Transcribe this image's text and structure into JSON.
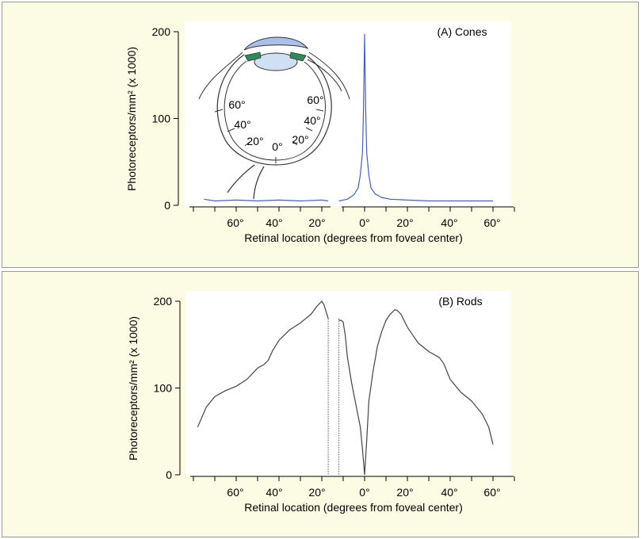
{
  "chart_data": [
    {
      "type": "line",
      "title": "(A) Cones",
      "xlabel": "Retinal location (degrees from foveal center)",
      "ylabel": "Photoreceptors/mm² (x 1000)",
      "x_ticks": [
        "60°",
        "40°",
        "20°",
        "0°",
        "20°",
        "40°",
        "60°"
      ],
      "y_ticks": [
        "0",
        "100",
        "200"
      ],
      "ylim": [
        0,
        200
      ],
      "xlim": [
        -80,
        70
      ],
      "series": [
        {
          "color": "#4a5fb0",
          "segments": [
            {
              "x": [
                -75,
                -70,
                -60,
                -50,
                -40,
                -30,
                -20,
                -17
              ],
              "y": [
                7,
                5,
                6,
                5,
                6,
                5,
                6,
                5
              ]
            },
            {
              "x": [
                -12,
                -8,
                -5,
                -3,
                -2,
                -1,
                -0.5,
                0,
                0.5,
                1,
                2,
                3,
                5,
                8,
                12,
                20,
                30,
                40,
                50,
                60
              ],
              "y": [
                5,
                7,
                12,
                20,
                35,
                60,
                110,
                197,
                110,
                60,
                35,
                20,
                13,
                9,
                7,
                6,
                5,
                5,
                5,
                5
              ]
            }
          ]
        }
      ],
      "inset": {
        "type": "eye-cross-section",
        "labels_left": [
          "60°",
          "40°",
          "20°"
        ],
        "label_center": "0°",
        "labels_right": [
          "60°",
          "40°",
          "20°"
        ]
      }
    },
    {
      "type": "line",
      "title": "(B) Rods",
      "xlabel": "Retinal location (degrees from foveal center)",
      "ylabel": "Photoreceptors/mm² (x 1000)",
      "x_ticks": [
        "60°",
        "40°",
        "20°",
        "0°",
        "20°",
        "40°",
        "60°"
      ],
      "y_ticks": [
        "0",
        "100",
        "200"
      ],
      "ylim": [
        0,
        200
      ],
      "xlim": [
        -80,
        70
      ],
      "blind_spot": [
        -17,
        -12
      ],
      "series": [
        {
          "color": "#444444",
          "segments": [
            {
              "x": [
                -78,
                -74,
                -70,
                -65,
                -60,
                -55,
                -50,
                -47,
                -45,
                -43,
                -40,
                -35,
                -30,
                -25,
                -22,
                -20,
                -19,
                -18,
                -17
              ],
              "y": [
                55,
                78,
                90,
                97,
                102,
                110,
                123,
                127,
                132,
                143,
                155,
                167,
                175,
                185,
                195,
                200,
                196,
                188,
                180
              ]
            },
            {
              "x": [
                -12,
                -11,
                -10,
                -9,
                -8,
                -6,
                -4,
                -2,
                -1,
                0
              ],
              "y": [
                178,
                178,
                176,
                160,
                135,
                105,
                80,
                55,
                30,
                0
              ]
            },
            {
              "x": [
                0,
                1,
                2,
                4,
                6,
                8,
                10,
                12,
                14,
                15,
                17,
                20,
                25,
                30,
                35,
                37,
                40,
                45,
                50,
                55,
                58,
                60
              ],
              "y": [
                0,
                40,
                85,
                120,
                148,
                165,
                178,
                185,
                190,
                190,
                185,
                170,
                152,
                142,
                135,
                128,
                110,
                95,
                85,
                70,
                55,
                35
              ]
            }
          ]
        }
      ]
    }
  ]
}
